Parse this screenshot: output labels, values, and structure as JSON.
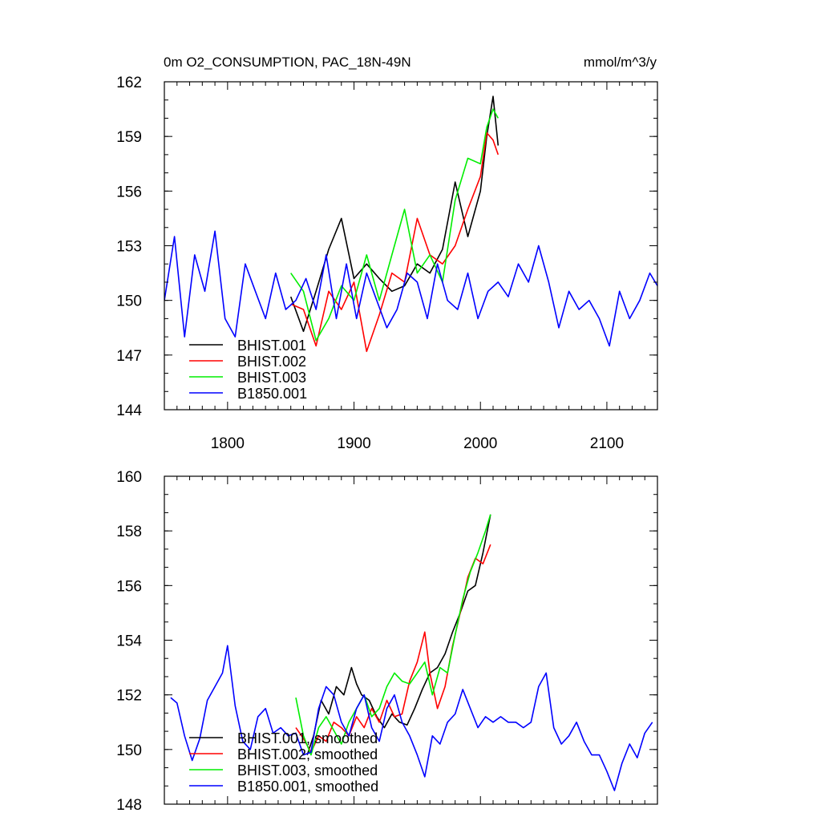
{
  "chart_data": [
    {
      "type": "line",
      "title_left": "0m O2_CONSUMPTION, PAC_18N-49N",
      "title_right": "mmol/m^3/y",
      "xlim": [
        1750,
        2140
      ],
      "ylim": [
        144,
        162
      ],
      "xticks": [
        1800,
        1900,
        2000,
        2100
      ],
      "xtick_labels": [
        "1800",
        "1900",
        "2000",
        "2100"
      ],
      "yticks": [
        144,
        147,
        150,
        153,
        156,
        159,
        162
      ],
      "ytick_labels": [
        "144",
        "147",
        "150",
        "153",
        "156",
        "159",
        "162"
      ],
      "legend_position": "bottom-left",
      "series": [
        {
          "name": "BHIST.001",
          "color": "#000000",
          "x": [
            1850,
            1860,
            1870,
            1880,
            1890,
            1900,
            1910,
            1920,
            1930,
            1940,
            1950,
            1960,
            1970,
            1980,
            1990,
            2000,
            2005,
            2010,
            2014
          ],
          "y": [
            150.2,
            148.3,
            150.5,
            152.8,
            154.5,
            151.2,
            152.0,
            151.2,
            150.5,
            150.8,
            152.0,
            151.5,
            152.8,
            156.5,
            153.5,
            156.0,
            159.0,
            161.2,
            158.5
          ]
        },
        {
          "name": "BHIST.002",
          "color": "#ff0000",
          "x": [
            1850,
            1860,
            1870,
            1880,
            1890,
            1900,
            1910,
            1920,
            1930,
            1940,
            1950,
            1960,
            1970,
            1980,
            1990,
            2000,
            2005,
            2010,
            2014
          ],
          "y": [
            149.8,
            149.5,
            147.5,
            150.5,
            149.5,
            151.0,
            147.2,
            149.2,
            151.5,
            151.0,
            154.5,
            152.5,
            152.0,
            153.0,
            155.0,
            156.8,
            159.2,
            158.8,
            158.0
          ]
        },
        {
          "name": "BHIST.003",
          "color": "#00ee00",
          "x": [
            1850,
            1860,
            1870,
            1880,
            1890,
            1900,
            1910,
            1920,
            1930,
            1940,
            1950,
            1960,
            1970,
            1980,
            1990,
            2000,
            2005,
            2010,
            2014
          ],
          "y": [
            151.5,
            150.5,
            147.8,
            149.0,
            150.8,
            150.0,
            152.5,
            150.0,
            152.5,
            155.0,
            151.5,
            152.5,
            151.0,
            155.5,
            157.8,
            157.5,
            159.5,
            160.5,
            160.0
          ]
        },
        {
          "name": "B1850.001",
          "color": "#0000ff",
          "x": [
            1750,
            1758,
            1766,
            1774,
            1782,
            1790,
            1798,
            1806,
            1814,
            1822,
            1830,
            1838,
            1846,
            1854,
            1862,
            1870,
            1878,
            1886,
            1894,
            1902,
            1910,
            1918,
            1926,
            1934,
            1942,
            1950,
            1958,
            1966,
            1974,
            1982,
            1990,
            1998,
            2006,
            2014,
            2022,
            2030,
            2038,
            2046,
            2054,
            2062,
            2070,
            2078,
            2086,
            2094,
            2102,
            2110,
            2118,
            2126,
            2134,
            2140
          ],
          "y": [
            150.0,
            153.5,
            148.0,
            152.5,
            150.5,
            153.8,
            149.0,
            148.0,
            152.0,
            150.5,
            149.0,
            151.5,
            149.5,
            150.0,
            151.2,
            149.5,
            152.5,
            149.0,
            152.0,
            149.0,
            151.5,
            150.0,
            148.5,
            149.5,
            151.5,
            151.0,
            149.0,
            152.0,
            150.0,
            149.5,
            151.5,
            149.0,
            150.5,
            151.0,
            150.2,
            152.0,
            151.0,
            153.0,
            151.0,
            148.5,
            150.5,
            149.5,
            150.0,
            149.0,
            147.5,
            150.5,
            149.0,
            150.0,
            151.5,
            150.8
          ]
        }
      ]
    },
    {
      "type": "line",
      "xlim": [
        1750,
        2140
      ],
      "ylim": [
        148,
        160
      ],
      "xticks": [
        1800,
        1900,
        2000,
        2100
      ],
      "yticks": [
        148,
        150,
        152,
        154,
        156,
        158,
        160
      ],
      "ytick_labels": [
        "148",
        "150",
        "152",
        "154",
        "156",
        "158",
        "160"
      ],
      "legend_position": "bottom-left",
      "series": [
        {
          "name": "BHIST.001, smoothed",
          "color": "#000000",
          "x": [
            1863,
            1868,
            1874,
            1880,
            1886,
            1892,
            1898,
            1902,
            1906,
            1912,
            1918,
            1924,
            1930,
            1936,
            1942,
            1948,
            1954,
            1960,
            1966,
            1972,
            1978,
            1984,
            1990,
            1996,
            2002,
            2008
          ],
          "y": [
            149.8,
            150.5,
            151.8,
            151.3,
            152.3,
            152.0,
            153.0,
            152.4,
            152.0,
            151.8,
            151.2,
            150.8,
            151.3,
            151.0,
            150.9,
            151.5,
            152.2,
            152.8,
            153.0,
            153.5,
            154.3,
            155.0,
            155.8,
            156.0,
            157.2,
            158.6
          ]
        },
        {
          "name": "BHIST.002, smoothed",
          "color": "#ff0000",
          "x": [
            1854,
            1860,
            1866,
            1872,
            1878,
            1884,
            1890,
            1896,
            1902,
            1908,
            1914,
            1920,
            1926,
            1932,
            1938,
            1944,
            1950,
            1956,
            1960,
            1966,
            1972,
            1978,
            1984,
            1990,
            1996,
            2002,
            2008
          ],
          "y": [
            150.8,
            150.4,
            149.9,
            150.5,
            150.3,
            151.0,
            150.8,
            150.5,
            151.2,
            150.8,
            151.5,
            151.0,
            151.8,
            151.2,
            151.3,
            152.5,
            153.2,
            154.3,
            152.8,
            151.5,
            152.3,
            153.8,
            155.0,
            156.3,
            157.0,
            156.8,
            157.5
          ]
        },
        {
          "name": "BHIST.003, smoothed",
          "color": "#00ee00",
          "x": [
            1854,
            1860,
            1866,
            1872,
            1878,
            1884,
            1890,
            1896,
            1902,
            1908,
            1914,
            1920,
            1926,
            1932,
            1938,
            1944,
            1950,
            1956,
            1962,
            1968,
            1974,
            1980,
            1986,
            1992,
            1998,
            2004,
            2008
          ],
          "y": [
            151.9,
            150.5,
            149.8,
            150.8,
            151.2,
            150.7,
            150.2,
            151.0,
            151.5,
            152.0,
            151.2,
            151.5,
            152.3,
            152.8,
            152.5,
            152.4,
            152.8,
            153.2,
            152.0,
            153.0,
            152.8,
            154.2,
            155.5,
            156.5,
            157.2,
            158.0,
            158.6
          ]
        },
        {
          "name": "B1850.001, smoothed",
          "color": "#0000ff",
          "x": [
            1755,
            1760,
            1766,
            1772,
            1778,
            1784,
            1790,
            1796,
            1800,
            1806,
            1812,
            1818,
            1824,
            1830,
            1836,
            1842,
            1848,
            1854,
            1860,
            1866,
            1872,
            1878,
            1884,
            1890,
            1896,
            1902,
            1908,
            1914,
            1920,
            1926,
            1932,
            1938,
            1944,
            1950,
            1956,
            1962,
            1968,
            1974,
            1980,
            1986,
            1992,
            1998,
            2004,
            2010,
            2016,
            2022,
            2028,
            2034,
            2040,
            2046,
            2052,
            2058,
            2064,
            2070,
            2076,
            2082,
            2088,
            2094,
            2100,
            2106,
            2112,
            2118,
            2124,
            2130,
            2136
          ],
          "y": [
            151.9,
            151.7,
            150.5,
            149.6,
            150.4,
            151.8,
            152.3,
            152.8,
            153.8,
            151.6,
            150.3,
            150.0,
            151.2,
            151.5,
            150.6,
            150.8,
            150.5,
            150.6,
            149.8,
            149.9,
            151.5,
            152.3,
            152.0,
            151.0,
            150.5,
            151.5,
            152.0,
            150.8,
            150.3,
            151.5,
            152.0,
            151.0,
            150.5,
            149.8,
            149.0,
            150.5,
            150.2,
            151.0,
            151.3,
            152.2,
            151.5,
            150.8,
            151.2,
            151.0,
            151.2,
            151.0,
            151.0,
            150.8,
            151.0,
            152.3,
            152.8,
            150.8,
            150.2,
            150.5,
            151.0,
            150.3,
            149.8,
            149.8,
            149.2,
            148.5,
            149.5,
            150.2,
            149.7,
            150.6,
            151.0
          ]
        }
      ]
    }
  ]
}
